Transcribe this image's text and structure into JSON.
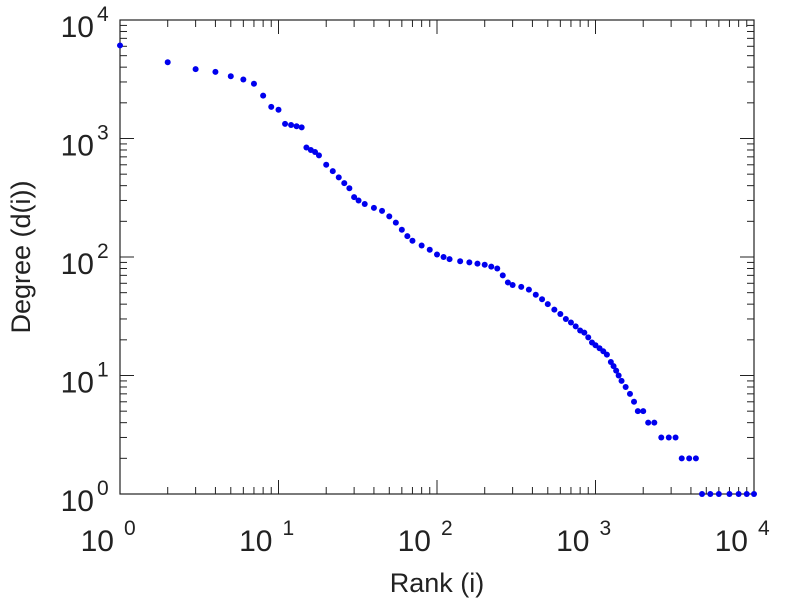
{
  "chart_data": {
    "type": "scatter",
    "xlabel": "Rank (i)",
    "ylabel": "Degree (d(i))",
    "xscale": "log",
    "yscale": "log",
    "xlim": [
      1,
      10000
    ],
    "ylim": [
      1,
      10000
    ],
    "grid": false,
    "marker_color": "#0000ee",
    "x_ticks": [
      {
        "base": "10",
        "exp": "0"
      },
      {
        "base": "10",
        "exp": "1"
      },
      {
        "base": "10",
        "exp": "2"
      },
      {
        "base": "10",
        "exp": "3"
      },
      {
        "base": "10",
        "exp": "4"
      }
    ],
    "y_ticks": [
      {
        "base": "10",
        "exp": "0"
      },
      {
        "base": "10",
        "exp": "1"
      },
      {
        "base": "10",
        "exp": "2"
      },
      {
        "base": "10",
        "exp": "3"
      },
      {
        "base": "10",
        "exp": "4"
      }
    ],
    "series": [
      {
        "points": [
          [
            1,
            6100
          ],
          [
            2,
            4400
          ],
          [
            3,
            3850
          ],
          [
            4,
            3650
          ],
          [
            5,
            3350
          ],
          [
            6,
            3150
          ],
          [
            7,
            2900
          ],
          [
            8,
            2300
          ],
          [
            9,
            1850
          ],
          [
            10,
            1750
          ],
          [
            11,
            1330
          ],
          [
            12,
            1300
          ],
          [
            13,
            1270
          ],
          [
            14,
            1240
          ],
          [
            15,
            840
          ],
          [
            16,
            800
          ],
          [
            17,
            770
          ],
          [
            18,
            720
          ],
          [
            20,
            600
          ],
          [
            22,
            530
          ],
          [
            24,
            470
          ],
          [
            26,
            420
          ],
          [
            28,
            380
          ],
          [
            30,
            320
          ],
          [
            32,
            300
          ],
          [
            35,
            280
          ],
          [
            40,
            260
          ],
          [
            45,
            245
          ],
          [
            50,
            220
          ],
          [
            55,
            195
          ],
          [
            60,
            170
          ],
          [
            65,
            150
          ],
          [
            70,
            137
          ],
          [
            80,
            125
          ],
          [
            90,
            115
          ],
          [
            100,
            105
          ],
          [
            110,
            100
          ],
          [
            120,
            96
          ],
          [
            140,
            92
          ],
          [
            160,
            90
          ],
          [
            180,
            88
          ],
          [
            200,
            86
          ],
          [
            220,
            83
          ],
          [
            240,
            80
          ],
          [
            260,
            70
          ],
          [
            280,
            61
          ],
          [
            300,
            58
          ],
          [
            340,
            56
          ],
          [
            380,
            53
          ],
          [
            420,
            48
          ],
          [
            460,
            44
          ],
          [
            500,
            40
          ],
          [
            550,
            36
          ],
          [
            600,
            33
          ],
          [
            650,
            30
          ],
          [
            700,
            28
          ],
          [
            750,
            26
          ],
          [
            800,
            24
          ],
          [
            850,
            23
          ],
          [
            900,
            21
          ],
          [
            950,
            19
          ],
          [
            1000,
            18
          ],
          [
            1060,
            17
          ],
          [
            1120,
            16
          ],
          [
            1180,
            15
          ],
          [
            1250,
            13
          ],
          [
            1300,
            12
          ],
          [
            1350,
            11
          ],
          [
            1400,
            10
          ],
          [
            1460,
            9
          ],
          [
            1550,
            8
          ],
          [
            1650,
            7
          ],
          [
            1750,
            6
          ],
          [
            1850,
            5
          ],
          [
            2000,
            5
          ],
          [
            2150,
            4
          ],
          [
            2350,
            4
          ],
          [
            2600,
            3
          ],
          [
            2900,
            3
          ],
          [
            3200,
            3
          ],
          [
            3500,
            2
          ],
          [
            3900,
            2
          ],
          [
            4300,
            2
          ],
          [
            4700,
            1
          ],
          [
            5300,
            1
          ],
          [
            6000,
            1
          ],
          [
            7000,
            1
          ],
          [
            8000,
            1
          ],
          [
            9000,
            1
          ],
          [
            10000,
            1
          ]
        ]
      }
    ]
  }
}
